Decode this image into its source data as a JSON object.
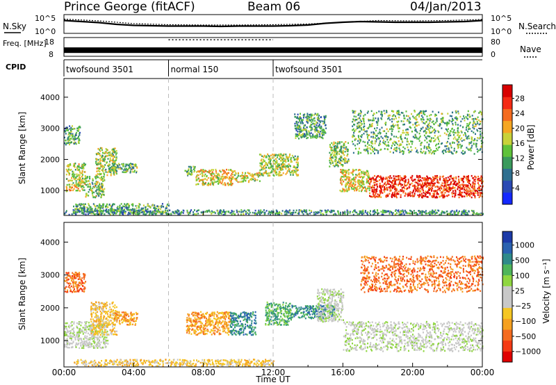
{
  "header": {
    "station": "Prince George (fitACF)",
    "beam": "Beam 06",
    "date": "04/Jan/2013"
  },
  "chart_data": [
    {
      "type": "line",
      "panel": "noise",
      "left_label": "N.Sky",
      "right_label": "N.Search",
      "left_ticks": [
        "10^5",
        "10^0"
      ],
      "right_ticks": [
        "10^5",
        "10^0"
      ],
      "series": [
        {
          "name": "N.Sky",
          "x": [
            0,
            1,
            2,
            3,
            4,
            5,
            6,
            7,
            8,
            9,
            10,
            11,
            12,
            13,
            14,
            15,
            16,
            17,
            18,
            19,
            20,
            21,
            22,
            23,
            24
          ],
          "values": [
            3.5,
            3.2,
            2.9,
            2.4,
            2.1,
            2.0,
            1.9,
            1.9,
            1.9,
            1.8,
            1.9,
            1.9,
            1.9,
            2.0,
            2.2,
            2.7,
            3.0,
            3.2,
            3.1,
            3.0,
            3.0,
            3.0,
            3.1,
            3.2,
            3.5
          ]
        },
        {
          "name": "N.Search",
          "x": [
            0,
            2,
            4,
            6,
            8,
            10,
            12,
            14,
            16,
            18,
            20,
            22,
            24
          ],
          "values": [
            3.9,
            3.4,
            2.6,
            2.3,
            2.2,
            2.2,
            2.3,
            2.5,
            3.0,
            3.5,
            3.4,
            3.5,
            3.8
          ]
        }
      ]
    },
    {
      "type": "line",
      "panel": "frequency",
      "left_label": "Freq. [MHz]",
      "right_label": "Nave",
      "left_ticks": [
        "18",
        "8"
      ],
      "right_ticks": [
        "80",
        "0"
      ],
      "segments": [
        {
          "x": [
            0,
            6
          ],
          "freq": 11,
          "nave": 28
        },
        {
          "x": [
            6,
            12
          ],
          "freq": 11,
          "nave": 70
        },
        {
          "x": [
            12,
            24
          ],
          "freq": 11,
          "nave": 28
        }
      ]
    },
    {
      "type": "table",
      "panel": "cpid",
      "label": "CPID",
      "segments": [
        {
          "start": 0,
          "end": 6,
          "name": "twofsound 3501"
        },
        {
          "start": 6,
          "end": 12,
          "name": "normal 150"
        },
        {
          "start": 12,
          "end": 24,
          "name": "twofsound 3501"
        }
      ]
    },
    {
      "type": "heatmap",
      "panel": "power",
      "ylabel": "Slant Range [km]",
      "yticks": [
        "1000",
        "2000",
        "3000",
        "4000"
      ],
      "ylim": [
        200,
        4600
      ],
      "colorbar": {
        "label": "Power [dB]",
        "ticks": [
          "4",
          "8",
          "12",
          "16",
          "20",
          "24",
          "28"
        ],
        "colors": [
          "#1428ff",
          "#2a49b3",
          "#2f6f8f",
          "#3a9a5c",
          "#5fc23a",
          "#c8d23a",
          "#f5a623",
          "#f46b1f",
          "#f42a14",
          "#d80000"
        ]
      },
      "blobs": [
        {
          "t": [
            0.0,
            0.9
          ],
          "r": [
            2500,
            3100
          ],
          "v": 0.35
        },
        {
          "t": [
            0.1,
            1.2
          ],
          "r": [
            1000,
            1900
          ],
          "v": 0.55
        },
        {
          "t": [
            1.2,
            2.3
          ],
          "r": [
            800,
            1500
          ],
          "v": 0.45
        },
        {
          "t": [
            1.8,
            3.0
          ],
          "r": [
            1500,
            2400
          ],
          "v": 0.5
        },
        {
          "t": [
            2.6,
            4.2
          ],
          "r": [
            1600,
            1900
          ],
          "v": 0.4
        },
        {
          "t": [
            0.5,
            6.0
          ],
          "r": [
            300,
            600
          ],
          "v": 0.35
        },
        {
          "t": [
            6.9,
            7.5
          ],
          "r": [
            1500,
            1800
          ],
          "v": 0.4
        },
        {
          "t": [
            7.5,
            9.8
          ],
          "r": [
            1200,
            1700
          ],
          "v": 0.6
        },
        {
          "t": [
            9.8,
            11.2
          ],
          "r": [
            1300,
            1600
          ],
          "v": 0.55
        },
        {
          "t": [
            11.2,
            13.4
          ],
          "r": [
            1500,
            2200
          ],
          "v": 0.5
        },
        {
          "t": [
            13.2,
            15.0
          ],
          "r": [
            2700,
            3500
          ],
          "v": 0.35
        },
        {
          "t": [
            15.2,
            16.3
          ],
          "r": [
            1800,
            2600
          ],
          "v": 0.45
        },
        {
          "t": [
            15.8,
            17.5
          ],
          "r": [
            1000,
            1700
          ],
          "v": 0.6
        },
        {
          "t": [
            17.5,
            24.0
          ],
          "r": [
            800,
            1500
          ],
          "v": 0.9
        },
        {
          "t": [
            16.5,
            24.0
          ],
          "r": [
            2200,
            3600
          ],
          "v": 0.4
        },
        {
          "t": [
            0.0,
            24.0
          ],
          "r": [
            200,
            400
          ],
          "v": 0.3
        }
      ]
    },
    {
      "type": "heatmap",
      "panel": "velocity",
      "ylabel": "Slant Range [km]",
      "yticks": [
        "1000",
        "2000",
        "3000",
        "4000"
      ],
      "ylim": [
        200,
        4600
      ],
      "xlabel": "Time UT",
      "xticks": [
        "00:00",
        "04:00",
        "08:00",
        "12:00",
        "16:00",
        "20:00",
        "00:00"
      ],
      "colorbar": {
        "label": "Velocity [m s⁻¹]",
        "ticks": [
          "1000",
          "500",
          "100",
          "25",
          "−25",
          "−100",
          "−500",
          "−1000"
        ],
        "colors": [
          "#1c3aa8",
          "#2a62b0",
          "#2f8a8a",
          "#4fb55a",
          "#8fd640",
          "#c8c8c8",
          "#c8c8c8",
          "#f5c623",
          "#f5a020",
          "#f46b1f",
          "#f43a14",
          "#e00000"
        ]
      },
      "blobs": [
        {
          "t": [
            0.0,
            1.2
          ],
          "r": [
            2500,
            3100
          ],
          "c": 9
        },
        {
          "t": [
            0.0,
            2.5
          ],
          "r": [
            800,
            1600
          ],
          "c": 5
        },
        {
          "t": [
            1.5,
            3.0
          ],
          "r": [
            1200,
            2200
          ],
          "c": 7
        },
        {
          "t": [
            2.8,
            4.2
          ],
          "r": [
            1500,
            1900
          ],
          "c": 8
        },
        {
          "t": [
            0.5,
            12.0
          ],
          "r": [
            200,
            450
          ],
          "c": 7
        },
        {
          "t": [
            7.0,
            9.5
          ],
          "r": [
            1200,
            1900
          ],
          "c": 8
        },
        {
          "t": [
            9.5,
            11.0
          ],
          "r": [
            1200,
            1900
          ],
          "c": 2
        },
        {
          "t": [
            11.5,
            13.0
          ],
          "r": [
            1500,
            2200
          ],
          "c": 3
        },
        {
          "t": [
            13.0,
            15.5
          ],
          "r": [
            1700,
            2100
          ],
          "c": 2
        },
        {
          "t": [
            14.5,
            16.0
          ],
          "r": [
            1600,
            2600
          ],
          "c": 5
        },
        {
          "t": [
            16.0,
            24.0
          ],
          "r": [
            700,
            1600
          ],
          "c": 5
        },
        {
          "t": [
            17.0,
            24.0
          ],
          "r": [
            2500,
            3600
          ],
          "c": 9
        }
      ]
    }
  ]
}
